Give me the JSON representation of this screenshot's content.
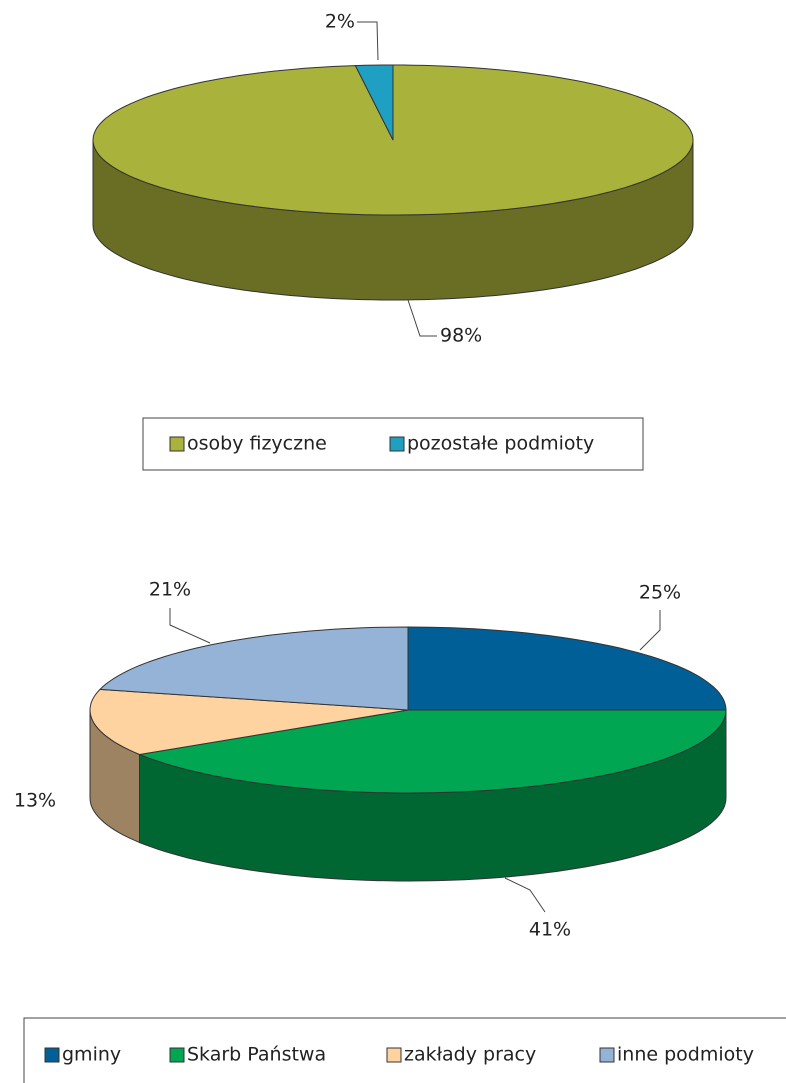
{
  "chart_data": [
    {
      "type": "pie3d",
      "categories": [
        "osoby fizyczne",
        "pozostałe podmioty"
      ],
      "values": [
        98,
        2
      ],
      "value_labels": [
        "98%",
        "2%"
      ],
      "colors": [
        "#a9b23a",
        "#1f9fc2"
      ]
    },
    {
      "type": "pie3d",
      "categories": [
        "gminy",
        "Skarb Państwa",
        "zakłady pracy",
        "inne podmioty"
      ],
      "values": [
        25,
        41,
        13,
        21
      ],
      "value_labels": [
        "25%",
        "41%",
        "13%",
        "21%"
      ],
      "colors": [
        "#005f96",
        "#00a651",
        "#ffd3a0",
        "#95b3d7"
      ]
    }
  ]
}
